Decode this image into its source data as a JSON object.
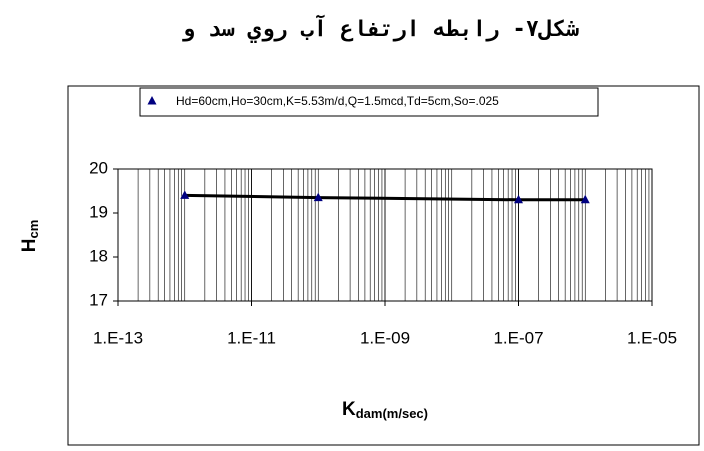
{
  "chart_data": {
    "type": "line",
    "title": "شکل۷- رابطه ارتفاع آب روي سد و",
    "legend_label": "Hd=60cm,Ho=30cm,K=5.53m/d,Q=1.5mcd,Td=5cm,So=.025",
    "x_label": "K",
    "x_label_sub": "dam(m/sec)",
    "y_label": "H",
    "y_label_sub": "cm",
    "x": [
      1e-12,
      1e-10,
      1e-07,
      1e-06
    ],
    "series": [
      {
        "name": "Hd=60cm,Ho=30cm,K=5.53m/d,Q=1.5mcd,Td=5cm,So=.025",
        "color": "#000080",
        "line_color": "#000000",
        "values": [
          19.4,
          19.35,
          19.3,
          19.3
        ]
      }
    ],
    "x_log": true,
    "grid": true,
    "xlim": [
      1e-13,
      1e-05
    ],
    "xticks": [
      {
        "value": 1e-13,
        "label": "1.E-13"
      },
      {
        "value": 1e-11,
        "label": "1.E-11"
      },
      {
        "value": 1e-09,
        "label": "1.E-09"
      },
      {
        "value": 1e-07,
        "label": "1.E-07"
      },
      {
        "value": 1e-05,
        "label": "1.E-05"
      }
    ],
    "ylim": [
      17,
      20
    ],
    "yticks": [
      17,
      18,
      19,
      20
    ]
  }
}
